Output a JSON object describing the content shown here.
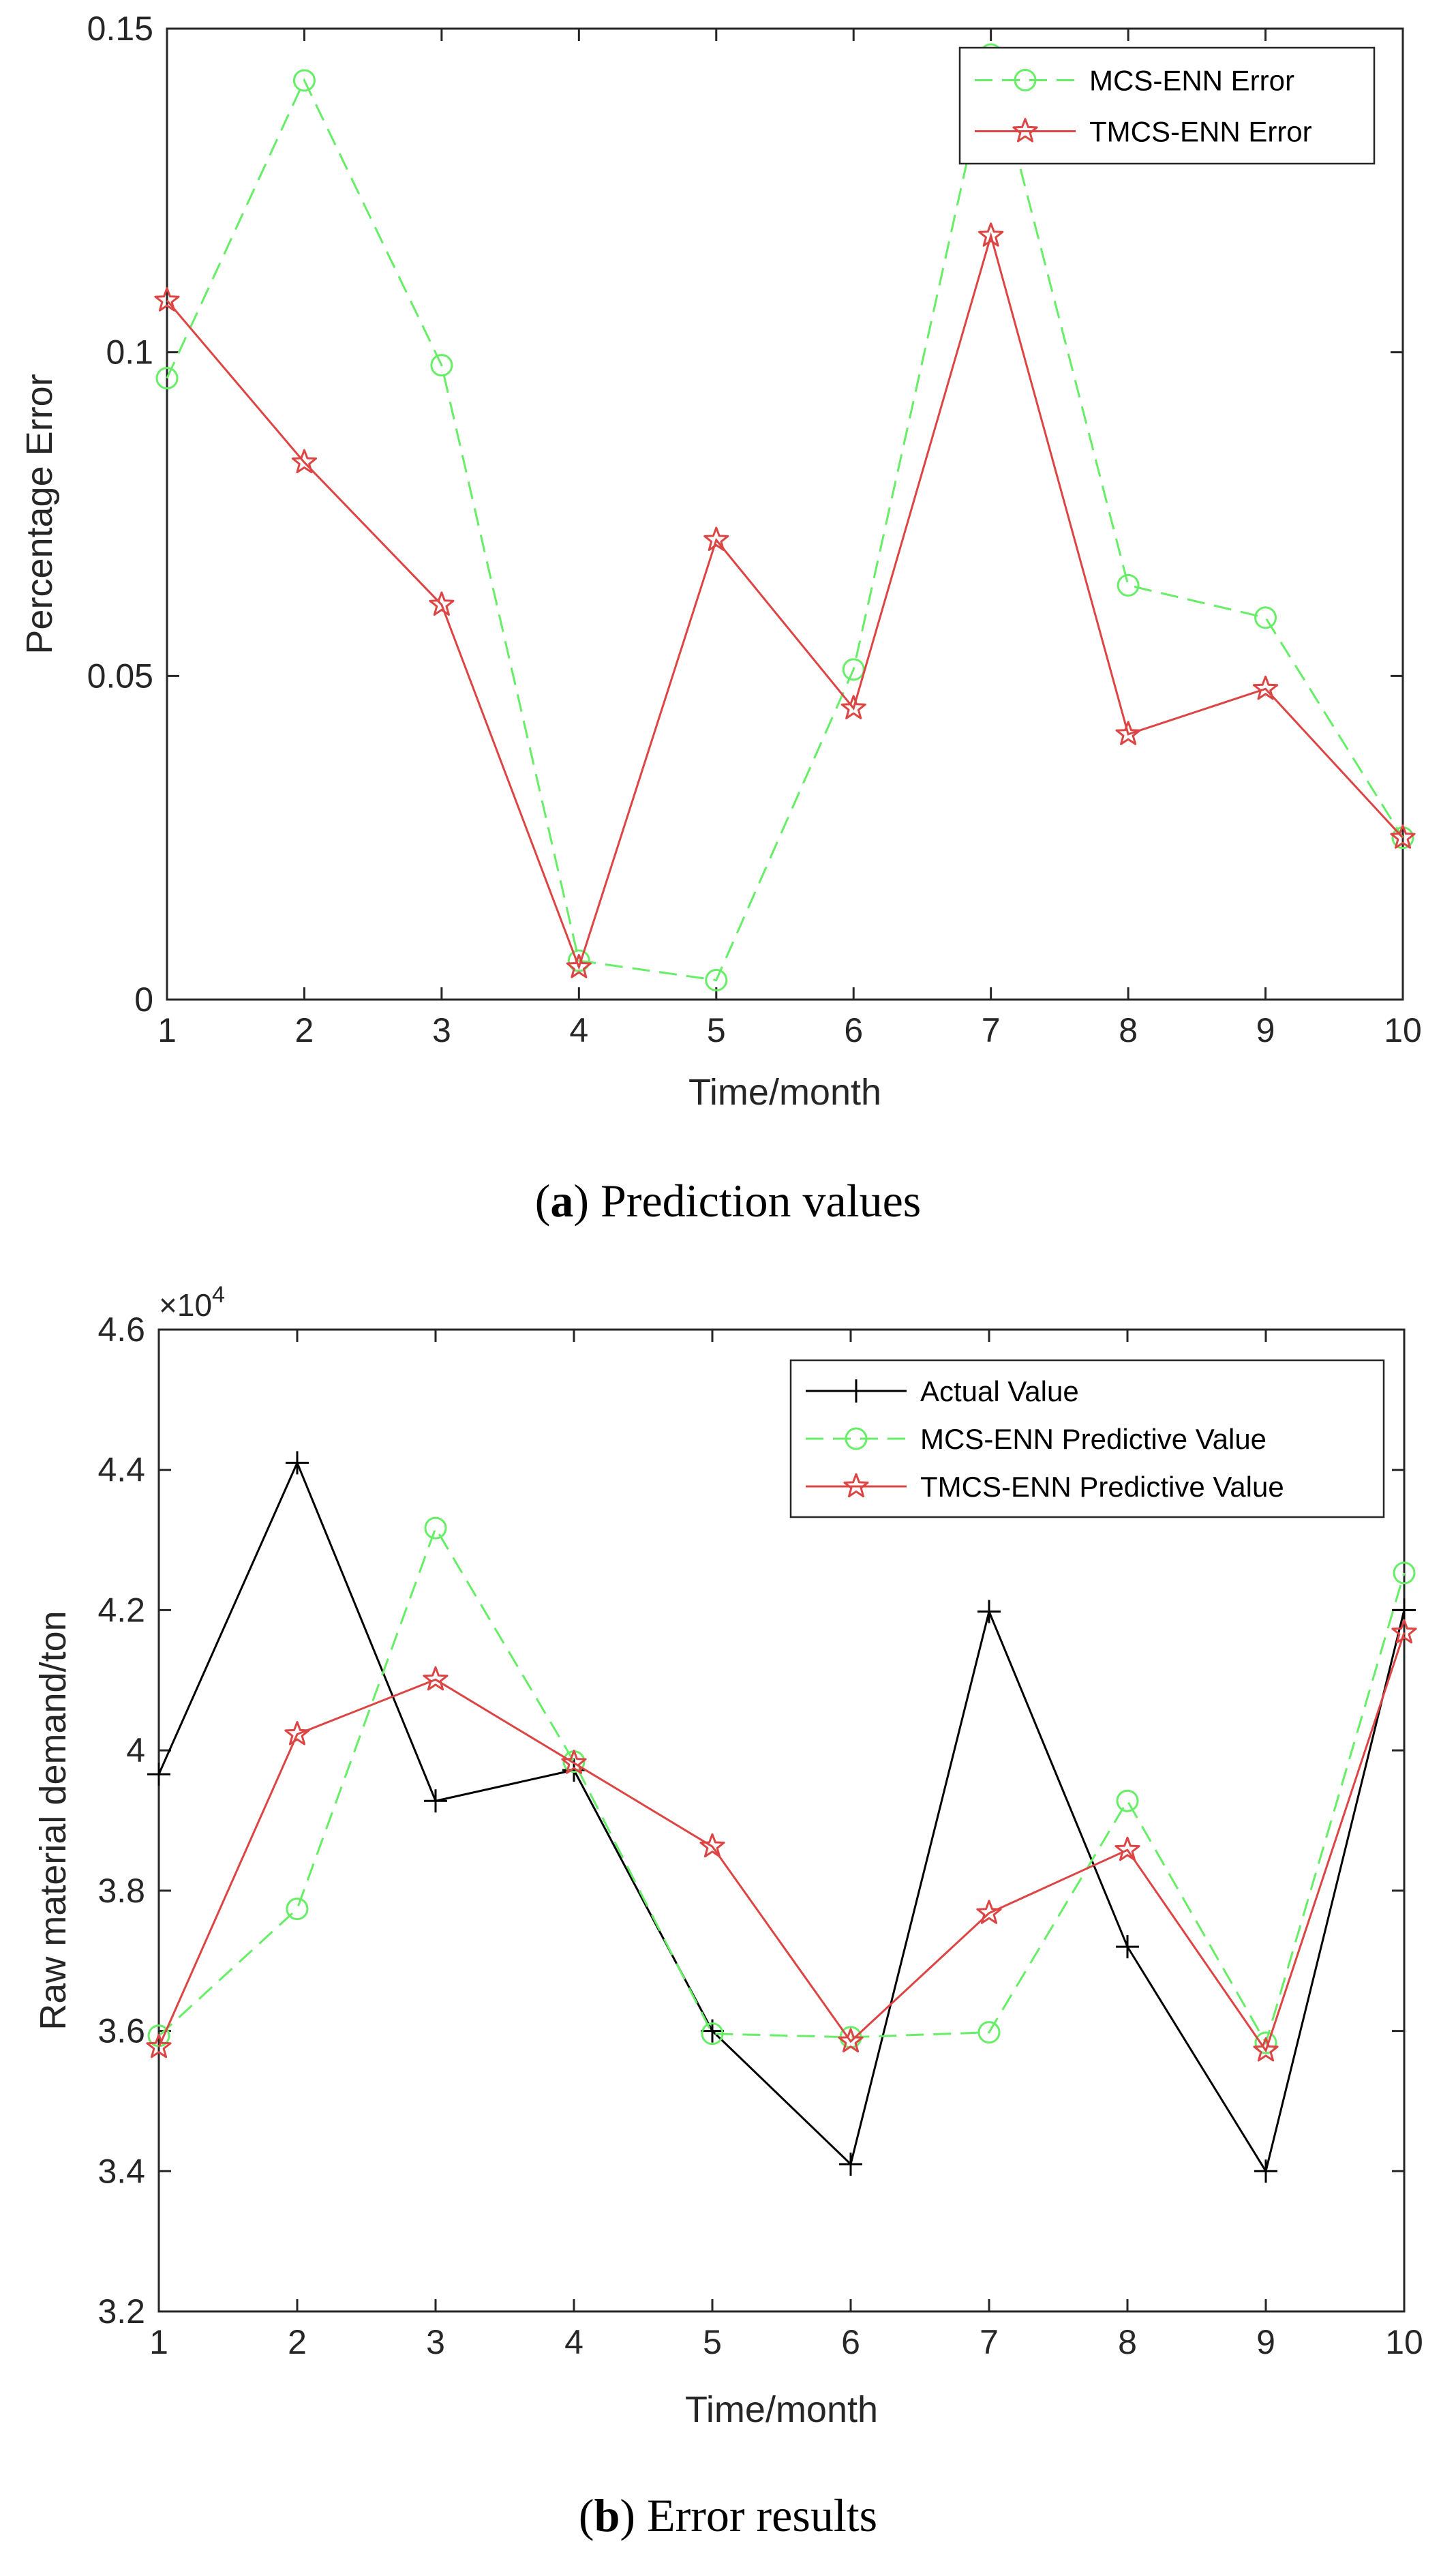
{
  "colors": {
    "actual": "#000000",
    "mcs": "#66ee66",
    "tmcs": "#dd4444",
    "axis": "#262626"
  },
  "chart_data": [
    {
      "type": "line",
      "caption_letter": "a",
      "caption_text": " Prediction values",
      "xlabel": "Time/month",
      "ylabel": "Percentage Error",
      "xlim": [
        1,
        10
      ],
      "ylim": [
        0,
        0.15
      ],
      "x_ticks": [
        1,
        2,
        3,
        4,
        5,
        6,
        7,
        8,
        9,
        10
      ],
      "x_tick_labels": [
        "1",
        "2",
        "3",
        "4",
        "5",
        "6",
        "7",
        "8",
        "9",
        "10"
      ],
      "y_ticks": [
        0,
        0.05,
        0.1,
        0.15
      ],
      "y_tick_labels": [
        "0",
        "0.05",
        "0.1",
        "0.15"
      ],
      "legend_position": "top-right",
      "x": [
        1,
        2,
        3,
        4,
        5,
        6,
        7,
        8,
        9,
        10
      ],
      "series": [
        {
          "name": "MCS-ENN Error",
          "style": "dashed",
          "marker": "circle",
          "color_key": "mcs",
          "values": [
            0.096,
            0.142,
            0.098,
            0.006,
            0.003,
            0.051,
            0.146,
            0.064,
            0.059,
            0.025
          ]
        },
        {
          "name": "TMCS-ENN Error",
          "style": "solid",
          "marker": "star",
          "color_key": "tmcs",
          "values": [
            0.108,
            0.083,
            0.061,
            0.005,
            0.071,
            0.045,
            0.118,
            0.041,
            0.048,
            0.025
          ]
        }
      ]
    },
    {
      "type": "line",
      "caption_letter": "b",
      "caption_text": " Error results",
      "xlabel": "Time/month",
      "ylabel": "Raw material demand/ton",
      "multiplier": "×10",
      "multiplier_exp": "4",
      "xlim": [
        1,
        10
      ],
      "ylim": [
        3.2,
        4.6
      ],
      "x_ticks": [
        1,
        2,
        3,
        4,
        5,
        6,
        7,
        8,
        9,
        10
      ],
      "x_tick_labels": [
        "1",
        "2",
        "3",
        "4",
        "5",
        "6",
        "7",
        "8",
        "9",
        "10"
      ],
      "y_ticks": [
        3.2,
        3.4,
        3.6,
        3.8,
        4.0,
        4.2,
        4.4,
        4.6
      ],
      "y_tick_labels": [
        "3.2",
        "3.4",
        "3.6",
        "3.8",
        "4",
        "4.2",
        "4.4",
        "4.6"
      ],
      "legend_position": "top-right",
      "x": [
        1,
        2,
        3,
        4,
        5,
        6,
        7,
        8,
        9,
        10
      ],
      "series": [
        {
          "name": "Actual Value",
          "style": "solid",
          "marker": "plus",
          "color_key": "actual",
          "values": [
            3.966,
            4.41,
            3.928,
            3.972,
            3.6,
            3.41,
            4.198,
            3.72,
            3.4,
            4.2
          ]
        },
        {
          "name": "MCS-ENN Predictive Value",
          "style": "dashed",
          "marker": "circle",
          "color_key": "mcs",
          "values": [
            3.593,
            3.774,
            4.317,
            3.984,
            3.596,
            3.591,
            3.598,
            3.928,
            3.583,
            4.253
          ]
        },
        {
          "name": "TMCS-ENN Predictive Value",
          "style": "solid",
          "marker": "star",
          "color_key": "tmcs",
          "values": [
            3.577,
            4.023,
            4.101,
            3.982,
            3.863,
            3.585,
            3.768,
            3.858,
            3.572,
            4.168
          ]
        }
      ]
    }
  ]
}
